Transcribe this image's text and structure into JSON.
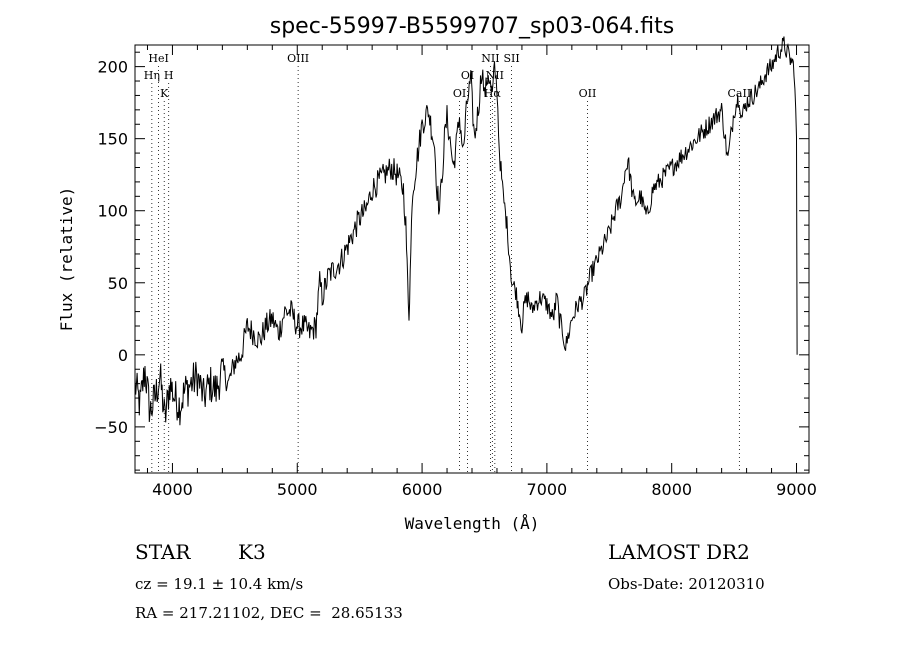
{
  "chart_data": {
    "type": "line",
    "title": "spec-55997-B5599707_sp03-064.fits",
    "xlabel": "Wavelength (Å)",
    "ylabel": "Flux (relative)",
    "xlim": [
      3700,
      9100
    ],
    "ylim": [
      -82,
      215
    ],
    "xticks": [
      4000,
      5000,
      6000,
      7000,
      8000,
      9000
    ],
    "yticks": [
      -50,
      0,
      50,
      100,
      150,
      200
    ],
    "grid": false,
    "line_color": "#000000",
    "series": [
      {
        "x": [
          3700,
          3740,
          3780,
          3820,
          3860,
          3900,
          3940,
          3980,
          4020,
          4060,
          4100,
          4150,
          4200,
          4250,
          4300,
          4350,
          4400,
          4450,
          4500,
          4550,
          4600,
          4650,
          4700,
          4750,
          4800,
          4850,
          4900,
          4950,
          5000,
          5050,
          5100,
          5150,
          5180,
          5200,
          5250,
          5300,
          5350,
          5400,
          5450,
          5500,
          5550,
          5600,
          5650,
          5700,
          5750,
          5800,
          5850,
          5870,
          5880,
          5895,
          5910,
          5920,
          5950,
          6000,
          6050,
          6080,
          6100,
          6120,
          6140,
          6160,
          6180,
          6200,
          6230,
          6250,
          6280,
          6300,
          6330,
          6360,
          6390,
          6420,
          6450,
          6480,
          6500,
          6530,
          6563,
          6580,
          6600,
          6620,
          6650,
          6680,
          6700,
          6720,
          6750,
          6780,
          6800,
          6820,
          6850,
          6880,
          6900,
          6950,
          7000,
          7050,
          7080,
          7100,
          7130,
          7150,
          7200,
          7250,
          7300,
          7350,
          7400,
          7450,
          7500,
          7550,
          7600,
          7620,
          7650,
          7680,
          7700,
          7750,
          7800,
          7850,
          7900,
          7950,
          8000,
          8050,
          8100,
          8150,
          8200,
          8250,
          8300,
          8350,
          8400,
          8450,
          8500,
          8540,
          8560,
          8600,
          8650,
          8700,
          8750,
          8800,
          8850,
          8900,
          8950,
          8980,
          9000,
          9005
        ],
        "y": [
          -20,
          -35,
          -10,
          -40,
          -30,
          -15,
          -45,
          -20,
          -30,
          -35,
          -25,
          -20,
          -15,
          -30,
          -20,
          -25,
          -10,
          -20,
          -5,
          0,
          20,
          15,
          10,
          20,
          25,
          15,
          30,
          30,
          20,
          20,
          15,
          20,
          50,
          40,
          55,
          60,
          65,
          75,
          85,
          95,
          100,
          115,
          120,
          125,
          130,
          125,
          115,
          90,
          60,
          30,
          70,
          110,
          130,
          160,
          170,
          155,
          145,
          115,
          100,
          125,
          150,
          165,
          145,
          130,
          150,
          165,
          140,
          175,
          190,
          150,
          170,
          200,
          180,
          195,
          180,
          200,
          185,
          140,
          110,
          90,
          70,
          50,
          45,
          30,
          20,
          35,
          40,
          30,
          35,
          40,
          35,
          25,
          40,
          25,
          15,
          5,
          25,
          35,
          40,
          55,
          65,
          75,
          85,
          100,
          110,
          125,
          135,
          115,
          105,
          110,
          95,
          115,
          120,
          125,
          130,
          135,
          140,
          145,
          150,
          155,
          160,
          165,
          170,
          135,
          170,
          180,
          165,
          175,
          180,
          185,
          195,
          200,
          210,
          215,
          205,
          200,
          150,
          0
        ]
      }
    ]
  },
  "lines_marked": [
    {
      "label": "HeI",
      "wavelength": 3889,
      "row": 0
    },
    {
      "label": "Hη",
      "wavelength": 3835,
      "row": 1
    },
    {
      "label": "H",
      "wavelength": 3970,
      "row": 1
    },
    {
      "label": "K",
      "wavelength": 3934,
      "row": 2
    },
    {
      "label": "OIII",
      "wavelength": 5007,
      "row": 0
    },
    {
      "label": "OI",
      "wavelength": 6364,
      "row": 1
    },
    {
      "label": "OI",
      "wavelength": 6300,
      "row": 2
    },
    {
      "label": "NII",
      "wavelength": 6548,
      "row": 0
    },
    {
      "label": "SII",
      "wavelength": 6717,
      "row": 0
    },
    {
      "label": "NII",
      "wavelength": 6583,
      "row": 1
    },
    {
      "label": "Hα",
      "wavelength": 6563,
      "row": 2
    },
    {
      "label": "OII",
      "wavelength": 7325,
      "row": 2
    },
    {
      "label": "CaII",
      "wavelength": 8542,
      "row": 2
    }
  ],
  "footer": {
    "object_class": "STAR",
    "subclass": "K3",
    "survey": "LAMOST DR2",
    "cz": "cz = 19.1 ± 10.4 km/s",
    "obs_date": "Obs-Date: 20120310",
    "radec": "RA = 217.21102, DEC =  28.65133"
  }
}
